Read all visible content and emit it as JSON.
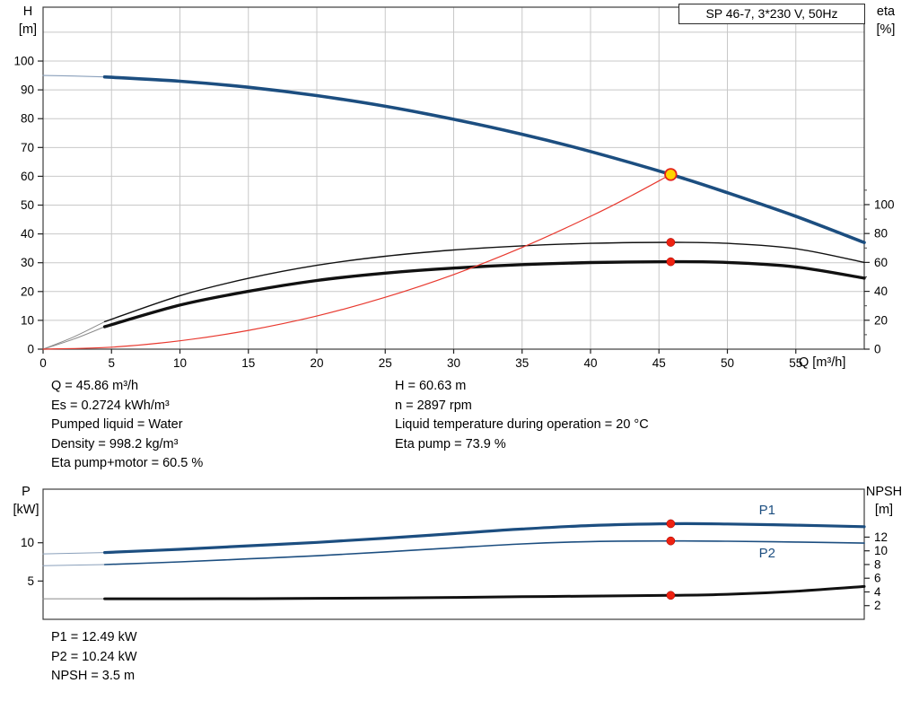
{
  "info": {
    "left": [
      "Q = 45.86 m³/h",
      "Es = 0.2724 kWh/m³",
      "Pumped liquid = Water",
      "Density = 998.2 kg/m³",
      "Eta pump+motor = 60.5 %"
    ],
    "right": [
      "H = 60.63 m",
      "n = 2897 rpm",
      "Liquid temperature during operation = 20 °C",
      "Eta pump = 73.9 %"
    ],
    "bottom": [
      "P1 = 12.49 kW",
      "P2 = 10.24 kW",
      "NPSH = 3.5 m"
    ]
  },
  "chart_data": [
    {
      "id": "head_eta",
      "type": "line",
      "title": "SP 46-7, 3*230 V, 50Hz",
      "x_axis": {
        "label": "Q [m³/h]",
        "min": 0,
        "max": 60,
        "ticks": [
          0,
          5,
          10,
          15,
          20,
          25,
          30,
          35,
          40,
          45,
          50,
          55
        ],
        "grid_ticks": [
          5,
          10,
          15,
          20,
          25,
          30,
          35,
          40,
          45,
          50,
          55
        ]
      },
      "y_left": {
        "name": "H",
        "unit": "[m]",
        "min": 0,
        "max": 118.7,
        "ticks": [
          0,
          10,
          20,
          30,
          40,
          50,
          60,
          70,
          80,
          90,
          100
        ],
        "grid_ticks": [
          10,
          20,
          30,
          40,
          50,
          60,
          70,
          80,
          90,
          100,
          110
        ]
      },
      "y_right": {
        "name": "eta",
        "unit": "[%]",
        "min": 0,
        "max": 236.6,
        "ticks": [
          0,
          20,
          40,
          60,
          80,
          100
        ],
        "minor_ticks": [
          10,
          30,
          50,
          70,
          90,
          110
        ]
      },
      "series": [
        {
          "name": "h-curve-leadin",
          "axis": "left",
          "color": "#8aa0bb",
          "width": 1.1,
          "x": [
            0,
            2.25,
            4.5
          ],
          "y": [
            95,
            94.8,
            94.5
          ]
        },
        {
          "name": "h-curve",
          "axis": "left",
          "color": "#1c4e80",
          "width": 3.6,
          "x": [
            4.5,
            10,
            15,
            20,
            25,
            30,
            35,
            40,
            45.86,
            50,
            55,
            60
          ],
          "y": [
            94.5,
            93.0,
            90.9,
            88.0,
            84.3,
            79.8,
            74.6,
            68.6,
            60.63,
            54.3,
            46.1,
            37.0
          ]
        },
        {
          "name": "eta-pump-leadin",
          "axis": "right",
          "color": "#8a8a8a",
          "width": 1,
          "x": [
            0,
            2.25,
            4.5
          ],
          "y": [
            0,
            8.5,
            19
          ]
        },
        {
          "name": "eta-pump-curve",
          "axis": "right",
          "color": "#111111",
          "width": 1.4,
          "x": [
            4.5,
            10,
            15,
            20,
            25,
            30,
            35,
            40,
            45.86,
            50,
            55,
            60
          ],
          "y": [
            19,
            37,
            49,
            58,
            64.3,
            68.6,
            71.5,
            73.2,
            73.9,
            73.2,
            69.5,
            60.0
          ]
        },
        {
          "name": "eta-pump-motor-leadin",
          "axis": "right",
          "color": "#8a8a8a",
          "width": 1,
          "x": [
            0,
            2.25,
            4.5
          ],
          "y": [
            0,
            7,
            15.5
          ]
        },
        {
          "name": "eta-pump-motor-curve",
          "axis": "right",
          "color": "#111111",
          "width": 3.4,
          "x": [
            4.5,
            10,
            15,
            20,
            25,
            30,
            35,
            40,
            45.86,
            50,
            55,
            60
          ],
          "y": [
            15.5,
            30.5,
            40.0,
            47.5,
            52.6,
            56.1,
            58.5,
            59.9,
            60.5,
            60.0,
            56.9,
            49.1
          ]
        },
        {
          "name": "duty-system-curve",
          "axis": "left",
          "color": "#e8392f",
          "width": 1.2,
          "x": [
            0,
            5,
            10,
            15,
            20,
            25,
            30,
            35,
            40,
            43,
            45.86
          ],
          "y": [
            0,
            0.7,
            2.9,
            6.5,
            11.5,
            18.0,
            25.9,
            35.3,
            46.1,
            53.3,
            60.63
          ]
        }
      ],
      "markers": [
        {
          "name": "duty-point",
          "axis": "left",
          "x": 45.86,
          "y": 60.63,
          "style": "duty"
        },
        {
          "name": "eta-pump-point",
          "axis": "right",
          "x": 45.86,
          "y": 73.9,
          "style": "dot"
        },
        {
          "name": "eta-pump-motor-point",
          "axis": "right",
          "x": 45.86,
          "y": 60.5,
          "style": "dot"
        }
      ],
      "annotations": []
    },
    {
      "id": "power_npsh",
      "type": "line",
      "title": "",
      "x_axis": {
        "label": "",
        "min": 0,
        "max": 60,
        "ticks": [],
        "grid_ticks": []
      },
      "y_left": {
        "name": "P",
        "unit": "[kW]",
        "min": 0,
        "max": 17,
        "ticks": [
          5,
          10
        ],
        "grid_ticks": []
      },
      "y_right": {
        "name": "NPSH",
        "unit": "[m]",
        "min": 0,
        "max": 19,
        "ticks": [
          2,
          4,
          6,
          8,
          10,
          12
        ],
        "minor_ticks": []
      },
      "series": [
        {
          "name": "p1-leadin",
          "axis": "left",
          "color": "#8aa0bb",
          "width": 1,
          "x": [
            0,
            4.5
          ],
          "y": [
            8.55,
            8.72
          ]
        },
        {
          "name": "p1-curve",
          "axis": "left",
          "color": "#1c4e80",
          "width": 3.2,
          "x": [
            4.5,
            10,
            15,
            20,
            25,
            30,
            35,
            40,
            45.86,
            50,
            55,
            60
          ],
          "y": [
            8.72,
            9.15,
            9.6,
            10.05,
            10.6,
            11.2,
            11.8,
            12.25,
            12.49,
            12.45,
            12.3,
            12.1
          ]
        },
        {
          "name": "p2-leadin",
          "axis": "left",
          "color": "#8aa0bb",
          "width": 1,
          "x": [
            0,
            4.5
          ],
          "y": [
            7.0,
            7.15
          ]
        },
        {
          "name": "p2-curve",
          "axis": "left",
          "color": "#1c4e80",
          "width": 1.6,
          "x": [
            4.5,
            10,
            15,
            20,
            25,
            30,
            35,
            40,
            45.86,
            50,
            55,
            60
          ],
          "y": [
            7.15,
            7.5,
            7.9,
            8.3,
            8.8,
            9.35,
            9.85,
            10.15,
            10.24,
            10.2,
            10.1,
            9.95
          ]
        },
        {
          "name": "npsh-leadin",
          "axis": "right",
          "color": "#8a8a8a",
          "width": 1,
          "x": [
            0,
            4.5
          ],
          "y": [
            3.0,
            3.0
          ]
        },
        {
          "name": "npsh-curve",
          "axis": "right",
          "color": "#111111",
          "width": 3.0,
          "x": [
            4.5,
            10,
            15,
            20,
            25,
            30,
            35,
            40,
            45.86,
            50,
            55,
            60
          ],
          "y": [
            3.0,
            3.0,
            3.02,
            3.06,
            3.12,
            3.2,
            3.3,
            3.4,
            3.5,
            3.65,
            4.1,
            4.8
          ]
        }
      ],
      "markers": [
        {
          "name": "p1-point",
          "axis": "left",
          "x": 45.86,
          "y": 12.49,
          "style": "dot"
        },
        {
          "name": "p2-point",
          "axis": "left",
          "x": 45.86,
          "y": 10.24,
          "style": "dot"
        },
        {
          "name": "npsh-point",
          "axis": "right",
          "x": 45.86,
          "y": 3.5,
          "style": "dot"
        }
      ],
      "annotations": [
        {
          "text": "P1",
          "axis": "left",
          "x": 52.3,
          "y": 13.7,
          "color": "#1c4e80"
        },
        {
          "text": "P2",
          "axis": "left",
          "x": 52.3,
          "y": 8.1,
          "color": "#1c4e80"
        }
      ]
    }
  ],
  "colors": {
    "curve_blue": "#1c4e80",
    "curve_black": "#111111",
    "curve_red": "#e8392f",
    "duty_fill": "#ffd400",
    "dot_red": "#ee2211",
    "grid": "#c8c8c8",
    "frame": "#3c3c3c"
  }
}
